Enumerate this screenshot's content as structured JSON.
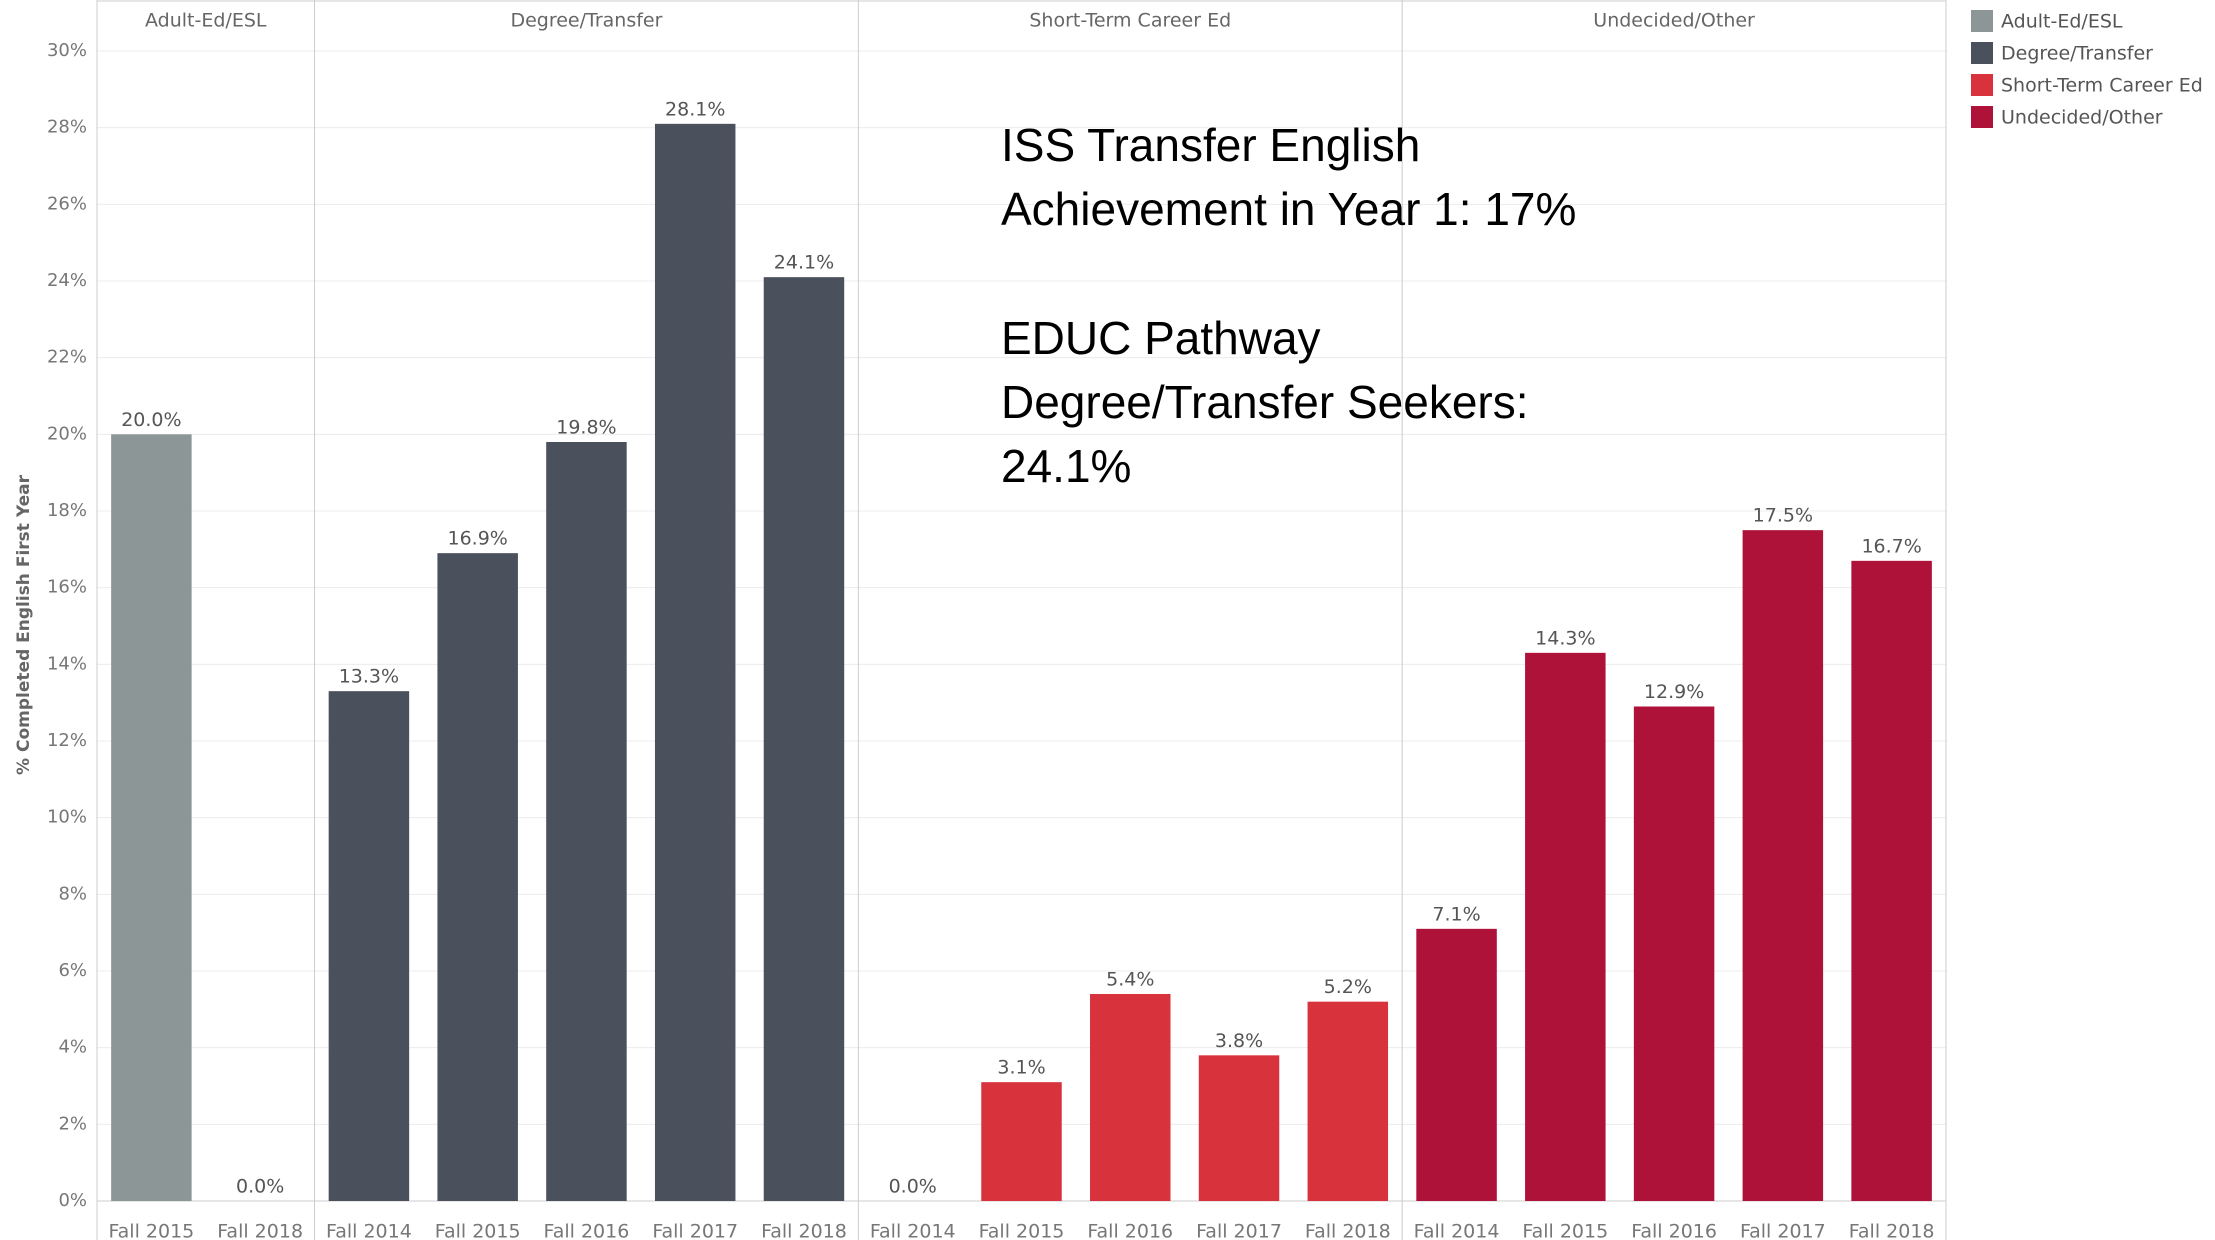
{
  "chart_data": {
    "type": "bar",
    "y_label": "% Completed English First Year",
    "ylim": [
      0,
      30
    ],
    "yticks": [
      {
        "value": 0,
        "label": "0%"
      },
      {
        "value": 2,
        "label": "2%"
      },
      {
        "value": 4,
        "label": "4%"
      },
      {
        "value": 6,
        "label": "6%"
      },
      {
        "value": 8,
        "label": "8%"
      },
      {
        "value": 10,
        "label": "10%"
      },
      {
        "value": 12,
        "label": "12%"
      },
      {
        "value": 14,
        "label": "14%"
      },
      {
        "value": 16,
        "label": "16%"
      },
      {
        "value": 18,
        "label": "18%"
      },
      {
        "value": 20,
        "label": "20%"
      },
      {
        "value": 22,
        "label": "22%"
      },
      {
        "value": 24,
        "label": "24%"
      },
      {
        "value": 26,
        "label": "26%"
      },
      {
        "value": 28,
        "label": "28%"
      },
      {
        "value": 30,
        "label": "30%"
      }
    ],
    "grid": true,
    "legend": "right",
    "panels": [
      {
        "name": "Adult-Ed/ESL",
        "color": "#8d9696",
        "categories": [
          "Fall 2015",
          "Fall 2018"
        ],
        "values": [
          20.0,
          0.0
        ],
        "value_labels": [
          "20.0%",
          "0.0%"
        ]
      },
      {
        "name": "Degree/Transfer",
        "color": "#4a505c",
        "categories": [
          "Fall 2014",
          "Fall 2015",
          "Fall 2016",
          "Fall 2017",
          "Fall 2018"
        ],
        "values": [
          13.3,
          16.9,
          19.8,
          28.1,
          24.1
        ],
        "value_labels": [
          "13.3%",
          "16.9%",
          "19.8%",
          "28.1%",
          "24.1%"
        ]
      },
      {
        "name": "Short-Term Career Ed",
        "color": "#d8323c",
        "categories": [
          "Fall 2014",
          "Fall 2015",
          "Fall 2016",
          "Fall 2017",
          "Fall 2018"
        ],
        "values": [
          0.0,
          3.1,
          5.4,
          3.8,
          5.2
        ],
        "value_labels": [
          "0.0%",
          "3.1%",
          "5.4%",
          "3.8%",
          "5.2%"
        ]
      },
      {
        "name": "Undecided/Other",
        "color": "#ae1238",
        "categories": [
          "Fall 2014",
          "Fall 2015",
          "Fall 2016",
          "Fall 2017",
          "Fall 2018"
        ],
        "values": [
          7.1,
          14.3,
          12.9,
          17.5,
          16.7
        ],
        "value_labels": [
          "7.1%",
          "14.3%",
          "12.9%",
          "17.5%",
          "16.7%"
        ]
      }
    ],
    "annotations": [
      [
        "ISS Transfer English",
        "Achievement in Year 1: 17%"
      ],
      [
        "EDUC Pathway",
        "Degree/Transfer Seekers:",
        "24.1%"
      ]
    ]
  }
}
